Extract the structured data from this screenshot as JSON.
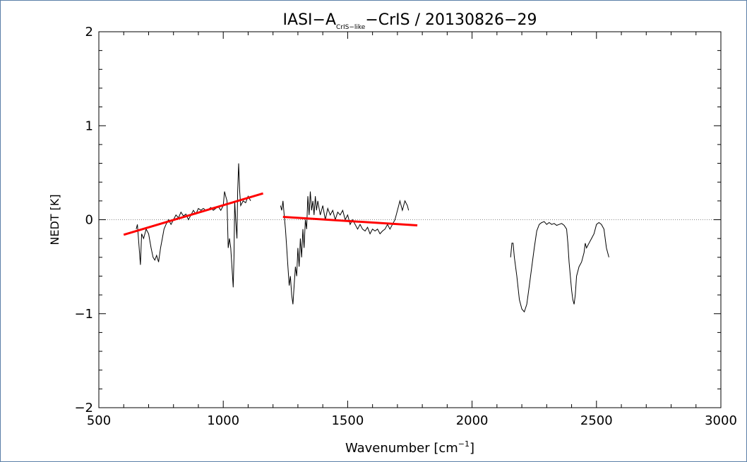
{
  "chart_data": {
    "type": "line",
    "title": {
      "prefix": "IASI−A",
      "subscript": "CrIS−like",
      "suffix": "−CrIS / 20130826−29"
    },
    "xlabel": "Wavenumber [cm",
    "xlabel_sup": "−1",
    "xlabel_close": "]",
    "ylabel": "NEDT [K]",
    "xlim": [
      500,
      3000
    ],
    "ylim": [
      -2,
      2
    ],
    "xticks": [
      500,
      1000,
      1500,
      2000,
      2500,
      3000
    ],
    "xtick_labels": [
      "500",
      "1000",
      "1500",
      "2000",
      "2500",
      "3000"
    ],
    "yticks": [
      -2,
      -1,
      0,
      1,
      2
    ],
    "ytick_labels": [
      "−2",
      "−1",
      "0",
      "1",
      "2"
    ],
    "zero_line": true,
    "colors": {
      "spectrum": "#000000",
      "fit": "#ff0000",
      "frame": "#5b7fa8",
      "zero": "#888888"
    },
    "series": [
      {
        "type": "line",
        "values": [
          [
            650,
            -0.1
          ],
          [
            655,
            -0.05
          ],
          [
            662,
            -0.3
          ],
          [
            667,
            -0.48
          ],
          [
            672,
            -0.15
          ],
          [
            680,
            -0.2
          ],
          [
            690,
            -0.1
          ],
          [
            700,
            -0.15
          ],
          [
            710,
            -0.3
          ],
          [
            718,
            -0.4
          ],
          [
            725,
            -0.43
          ],
          [
            732,
            -0.38
          ],
          [
            740,
            -0.45
          ],
          [
            748,
            -0.3
          ],
          [
            755,
            -0.2
          ],
          [
            762,
            -0.1
          ],
          [
            770,
            -0.05
          ],
          [
            780,
            0.0
          ],
          [
            790,
            -0.05
          ],
          [
            800,
            0.0
          ],
          [
            810,
            0.05
          ],
          [
            820,
            0.02
          ],
          [
            830,
            0.08
          ],
          [
            840,
            0.04
          ],
          [
            850,
            0.06
          ],
          [
            860,
            0.0
          ],
          [
            870,
            0.05
          ],
          [
            880,
            0.1
          ],
          [
            890,
            0.06
          ],
          [
            900,
            0.12
          ],
          [
            910,
            0.1
          ],
          [
            920,
            0.12
          ],
          [
            930,
            0.1
          ],
          [
            940,
            0.11
          ],
          [
            950,
            0.13
          ],
          [
            960,
            0.1
          ],
          [
            970,
            0.12
          ],
          [
            980,
            0.14
          ],
          [
            990,
            0.1
          ],
          [
            1000,
            0.15
          ],
          [
            1005,
            0.3
          ],
          [
            1010,
            0.25
          ],
          [
            1015,
            0.2
          ],
          [
            1020,
            -0.3
          ],
          [
            1025,
            -0.2
          ],
          [
            1030,
            -0.3
          ],
          [
            1035,
            -0.5
          ],
          [
            1040,
            -0.72
          ],
          [
            1043,
            -0.4
          ],
          [
            1046,
            0.2
          ],
          [
            1050,
            0.0
          ],
          [
            1055,
            -0.2
          ],
          [
            1058,
            0.3
          ],
          [
            1062,
            0.6
          ],
          [
            1066,
            0.3
          ],
          [
            1070,
            0.15
          ],
          [
            1080,
            0.2
          ],
          [
            1090,
            0.18
          ],
          [
            1100,
            0.25
          ],
          [
            1110,
            0.2
          ]
        ]
      },
      {
        "type": "line",
        "values": [
          [
            1230,
            0.15
          ],
          [
            1235,
            0.1
          ],
          [
            1240,
            0.2
          ],
          [
            1245,
            0.05
          ],
          [
            1250,
            -0.1
          ],
          [
            1255,
            -0.3
          ],
          [
            1260,
            -0.5
          ],
          [
            1265,
            -0.7
          ],
          [
            1270,
            -0.6
          ],
          [
            1275,
            -0.8
          ],
          [
            1280,
            -0.9
          ],
          [
            1285,
            -0.7
          ],
          [
            1290,
            -0.5
          ],
          [
            1295,
            -0.6
          ],
          [
            1300,
            -0.3
          ],
          [
            1305,
            -0.5
          ],
          [
            1310,
            -0.2
          ],
          [
            1315,
            -0.4
          ],
          [
            1320,
            -0.1
          ],
          [
            1325,
            -0.3
          ],
          [
            1330,
            0.0
          ],
          [
            1335,
            -0.1
          ],
          [
            1340,
            0.25
          ],
          [
            1345,
            0.05
          ],
          [
            1350,
            0.3
          ],
          [
            1355,
            0.1
          ],
          [
            1360,
            0.2
          ],
          [
            1365,
            0.05
          ],
          [
            1370,
            0.25
          ],
          [
            1375,
            0.1
          ],
          [
            1380,
            0.2
          ],
          [
            1390,
            0.05
          ],
          [
            1400,
            0.15
          ],
          [
            1410,
            0.0
          ],
          [
            1420,
            0.12
          ],
          [
            1430,
            0.05
          ],
          [
            1440,
            0.1
          ],
          [
            1450,
            0.0
          ],
          [
            1460,
            0.08
          ],
          [
            1470,
            0.05
          ],
          [
            1480,
            0.1
          ],
          [
            1490,
            0.0
          ],
          [
            1500,
            0.05
          ],
          [
            1510,
            -0.05
          ],
          [
            1520,
            0.0
          ],
          [
            1530,
            -0.05
          ],
          [
            1540,
            -0.1
          ],
          [
            1550,
            -0.05
          ],
          [
            1560,
            -0.1
          ],
          [
            1570,
            -0.12
          ],
          [
            1580,
            -0.08
          ],
          [
            1590,
            -0.15
          ],
          [
            1600,
            -0.1
          ],
          [
            1610,
            -0.12
          ],
          [
            1620,
            -0.1
          ],
          [
            1630,
            -0.15
          ],
          [
            1640,
            -0.12
          ],
          [
            1650,
            -0.1
          ],
          [
            1660,
            -0.05
          ],
          [
            1670,
            -0.1
          ],
          [
            1680,
            -0.05
          ],
          [
            1690,
            0.0
          ],
          [
            1700,
            0.1
          ],
          [
            1710,
            0.2
          ],
          [
            1720,
            0.1
          ],
          [
            1730,
            0.2
          ],
          [
            1740,
            0.15
          ],
          [
            1745,
            0.1
          ]
        ]
      },
      {
        "type": "line",
        "values": [
          [
            2155,
            -0.4
          ],
          [
            2160,
            -0.25
          ],
          [
            2165,
            -0.25
          ],
          [
            2170,
            -0.4
          ],
          [
            2180,
            -0.6
          ],
          [
            2190,
            -0.85
          ],
          [
            2200,
            -0.95
          ],
          [
            2210,
            -0.98
          ],
          [
            2220,
            -0.9
          ],
          [
            2230,
            -0.7
          ],
          [
            2240,
            -0.5
          ],
          [
            2250,
            -0.3
          ],
          [
            2260,
            -0.12
          ],
          [
            2270,
            -0.05
          ],
          [
            2280,
            -0.03
          ],
          [
            2290,
            -0.02
          ],
          [
            2300,
            -0.05
          ],
          [
            2310,
            -0.03
          ],
          [
            2320,
            -0.05
          ],
          [
            2330,
            -0.04
          ],
          [
            2340,
            -0.06
          ],
          [
            2350,
            -0.05
          ],
          [
            2360,
            -0.04
          ],
          [
            2370,
            -0.06
          ],
          [
            2380,
            -0.1
          ],
          [
            2385,
            -0.25
          ],
          [
            2390,
            -0.45
          ],
          [
            2395,
            -0.6
          ],
          [
            2400,
            -0.75
          ],
          [
            2405,
            -0.85
          ],
          [
            2410,
            -0.9
          ],
          [
            2415,
            -0.8
          ],
          [
            2420,
            -0.6
          ],
          [
            2430,
            -0.5
          ],
          [
            2440,
            -0.45
          ],
          [
            2450,
            -0.35
          ],
          [
            2455,
            -0.25
          ],
          [
            2460,
            -0.3
          ],
          [
            2470,
            -0.25
          ],
          [
            2480,
            -0.2
          ],
          [
            2490,
            -0.15
          ],
          [
            2500,
            -0.05
          ],
          [
            2510,
            -0.03
          ],
          [
            2520,
            -0.05
          ],
          [
            2530,
            -0.1
          ],
          [
            2540,
            -0.3
          ],
          [
            2550,
            -0.4
          ]
        ]
      },
      {
        "type": "fit",
        "values": [
          [
            600,
            -0.16
          ],
          [
            1160,
            0.28
          ]
        ]
      },
      {
        "type": "fit",
        "values": [
          [
            1240,
            0.03
          ],
          [
            1780,
            -0.06
          ]
        ]
      }
    ]
  }
}
